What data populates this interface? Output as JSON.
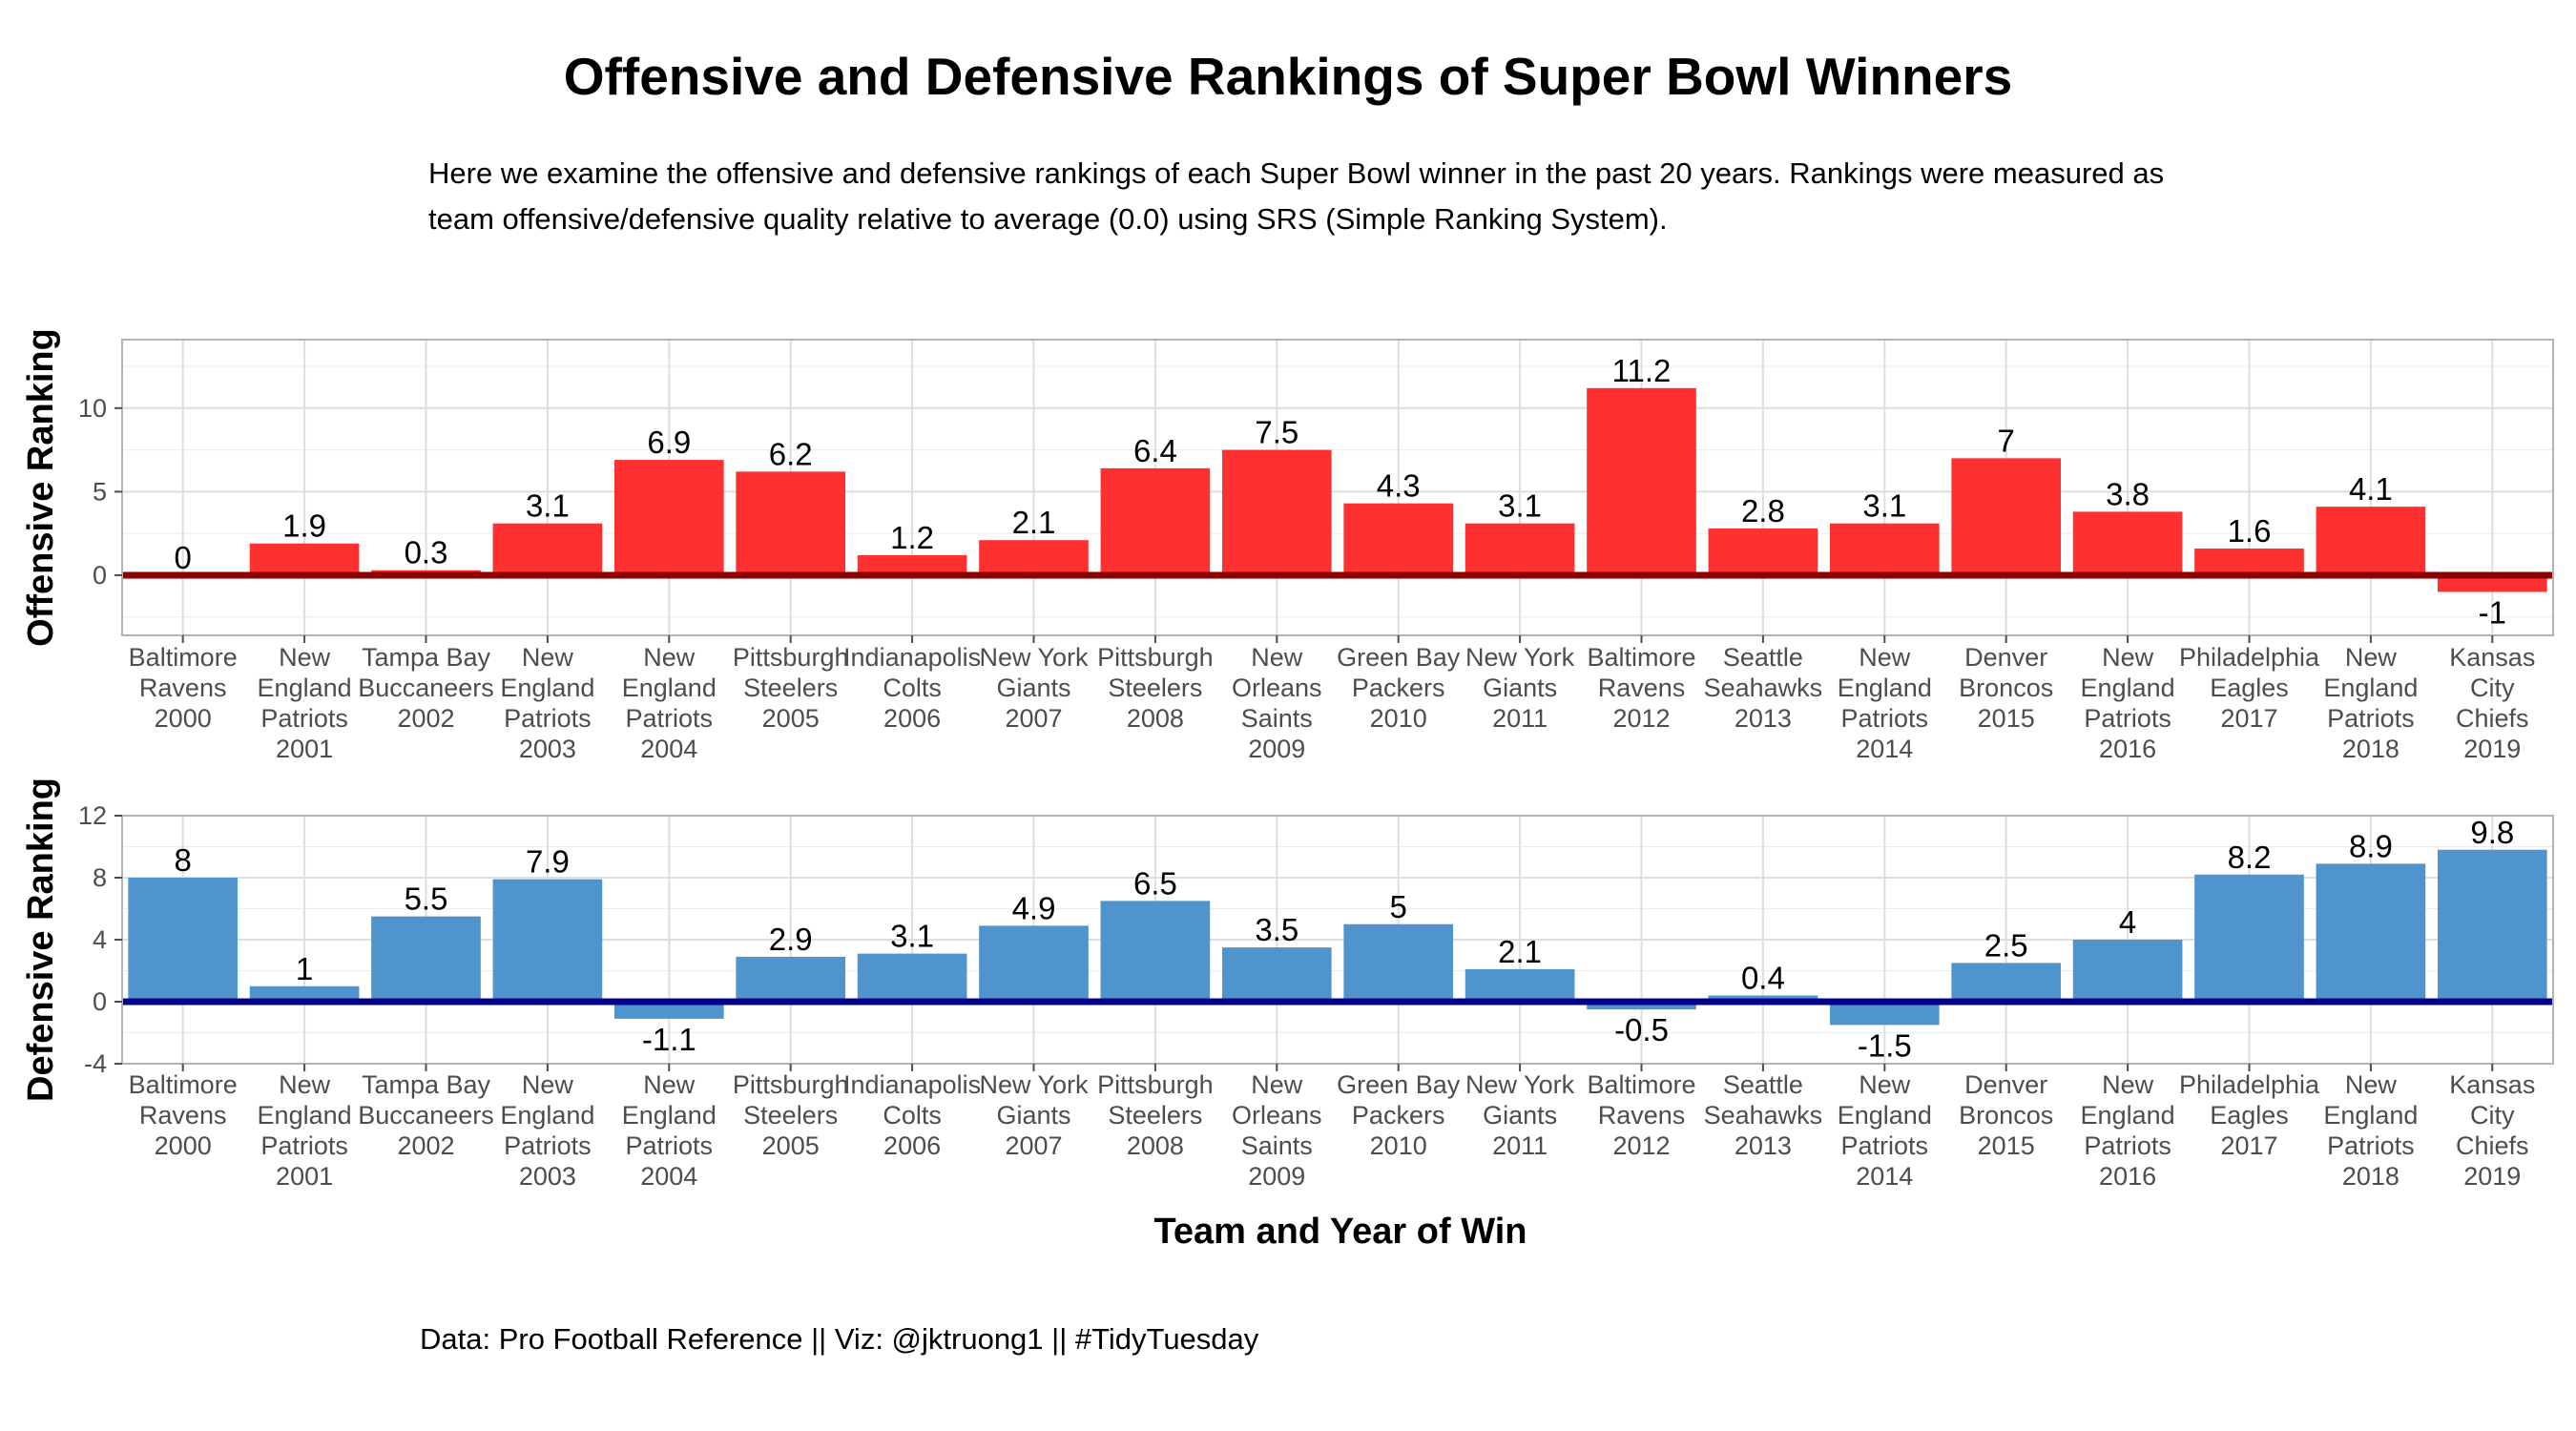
{
  "title": "Offensive and Defensive Rankings of Super Bowl Winners",
  "subtitle": "Here we examine the offensive and defensive rankings of each Super Bowl winner in the past 20 years. Rankings were measured as team offensive/defensive quality relative to average (0.0) using SRS (Simple Ranking System).",
  "caption": "Data: Pro Football Reference || Viz: @jktruong1 || #TidyTuesday",
  "chart_data": [
    {
      "type": "bar",
      "title": "",
      "xlabel": "",
      "ylabel": "Offensive Ranking",
      "categories": [
        [
          "Baltimore",
          "Ravens",
          "2000"
        ],
        [
          "New",
          "England",
          "Patriots",
          "2001"
        ],
        [
          "Tampa Bay",
          "Buccaneers",
          "2002"
        ],
        [
          "New",
          "England",
          "Patriots",
          "2003"
        ],
        [
          "New",
          "England",
          "Patriots",
          "2004"
        ],
        [
          "Pittsburgh",
          "Steelers",
          "2005"
        ],
        [
          "Indianapolis",
          "Colts",
          "2006"
        ],
        [
          "New York",
          "Giants",
          "2007"
        ],
        [
          "Pittsburgh",
          "Steelers",
          "2008"
        ],
        [
          "New",
          "Orleans",
          "Saints",
          "2009"
        ],
        [
          "Green Bay",
          "Packers",
          "2010"
        ],
        [
          "New York",
          "Giants",
          "2011"
        ],
        [
          "Baltimore",
          "Ravens",
          "2012"
        ],
        [
          "Seattle",
          "Seahawks",
          "2013"
        ],
        [
          "New",
          "England",
          "Patriots",
          "2014"
        ],
        [
          "Denver",
          "Broncos",
          "2015"
        ],
        [
          "New",
          "England",
          "Patriots",
          "2016"
        ],
        [
          "Philadelphia",
          "Eagles",
          "2017"
        ],
        [
          "New",
          "England",
          "Patriots",
          "2018"
        ],
        [
          "Kansas",
          "City",
          "Chiefs",
          "2019"
        ]
      ],
      "values": [
        0,
        1.9,
        0.3,
        3.1,
        6.9,
        6.2,
        1.2,
        2.1,
        6.4,
        7.5,
        4.3,
        3.1,
        11.2,
        2.8,
        3.1,
        7,
        3.8,
        1.6,
        4.1,
        -1
      ],
      "ylim": [
        -3.6,
        14.1
      ],
      "yticks": [
        0,
        5,
        10
      ],
      "grid": true,
      "bar_color": "#ff3030",
      "zero_line_color": "#8b0000"
    },
    {
      "type": "bar",
      "title": "",
      "xlabel": "Team and Year of Win",
      "ylabel": "Defensive Ranking",
      "categories": [
        [
          "Baltimore",
          "Ravens",
          "2000"
        ],
        [
          "New",
          "England",
          "Patriots",
          "2001"
        ],
        [
          "Tampa Bay",
          "Buccaneers",
          "2002"
        ],
        [
          "New",
          "England",
          "Patriots",
          "2003"
        ],
        [
          "New",
          "England",
          "Patriots",
          "2004"
        ],
        [
          "Pittsburgh",
          "Steelers",
          "2005"
        ],
        [
          "Indianapolis",
          "Colts",
          "2006"
        ],
        [
          "New York",
          "Giants",
          "2007"
        ],
        [
          "Pittsburgh",
          "Steelers",
          "2008"
        ],
        [
          "New",
          "Orleans",
          "Saints",
          "2009"
        ],
        [
          "Green Bay",
          "Packers",
          "2010"
        ],
        [
          "New York",
          "Giants",
          "2011"
        ],
        [
          "Baltimore",
          "Ravens",
          "2012"
        ],
        [
          "Seattle",
          "Seahawks",
          "2013"
        ],
        [
          "New",
          "England",
          "Patriots",
          "2014"
        ],
        [
          "Denver",
          "Broncos",
          "2015"
        ],
        [
          "New",
          "England",
          "Patriots",
          "2016"
        ],
        [
          "Philadelphia",
          "Eagles",
          "2017"
        ],
        [
          "New",
          "England",
          "Patriots",
          "2018"
        ],
        [
          "Kansas",
          "City",
          "Chiefs",
          "2019"
        ]
      ],
      "values": [
        8,
        1,
        5.5,
        7.9,
        -1.1,
        2.9,
        3.1,
        4.9,
        6.5,
        3.5,
        5,
        2.1,
        -0.5,
        0.4,
        -1.5,
        2.5,
        4,
        8.2,
        8.9,
        9.8
      ],
      "ylim": [
        -4,
        12
      ],
      "yticks": [
        -4,
        0,
        4,
        8,
        12
      ],
      "grid": true,
      "bar_color": "#4f94cd",
      "zero_line_color": "#00008b"
    }
  ]
}
